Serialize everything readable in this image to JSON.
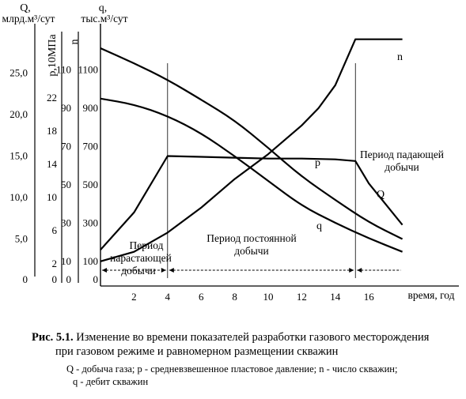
{
  "chart_data": {
    "type": "line",
    "x_axis": {
      "label": "время, год",
      "range": [
        0,
        18
      ],
      "ticks": [
        2,
        4,
        6,
        8,
        10,
        12,
        14,
        16
      ]
    },
    "y_axes": [
      {
        "id": "Q",
        "label": "Q,",
        "units": "млрд.м³/сут",
        "range": [
          0,
          30
        ],
        "ticks": [
          0,
          5.0,
          10.0,
          15.0,
          20.0,
          25.0
        ],
        "tick_labels": [
          "0",
          "5,0",
          "10,0",
          "15,0",
          "20,0",
          "25,0"
        ]
      },
      {
        "id": "p",
        "label": "р,10МПа",
        "range": [
          0,
          30
        ],
        "ticks": [
          0,
          2,
          6,
          10,
          14,
          18,
          22
        ],
        "tick_labels": [
          "0",
          "2",
          "6",
          "10",
          "14",
          "18",
          "22"
        ]
      },
      {
        "id": "n",
        "label": "n",
        "range": [
          0,
          130
        ],
        "ticks": [
          0,
          10,
          30,
          50,
          70,
          90,
          110
        ],
        "tick_labels": [
          "0",
          "10",
          "30",
          "50",
          "70",
          "90",
          "110"
        ]
      },
      {
        "id": "q",
        "label": "q,",
        "units": "тыс.м³/сут",
        "range": [
          0,
          1300
        ],
        "ticks": [
          0,
          100,
          300,
          500,
          700,
          900,
          1100
        ],
        "tick_labels": [
          "0",
          "100",
          "300",
          "500",
          "700",
          "900",
          "1100"
        ]
      }
    ],
    "series": [
      {
        "name": "n",
        "axis": "n",
        "x": [
          0,
          2,
          4,
          6,
          8,
          10,
          12,
          13,
          14,
          15.2,
          16,
          18
        ],
        "y": [
          10,
          15,
          25,
          38,
          53,
          66,
          81,
          90,
          102,
          126,
          126,
          126
        ]
      },
      {
        "name": "p",
        "axis": "p",
        "x": [
          0,
          2,
          4,
          6,
          8,
          10,
          12,
          14,
          16,
          18
        ],
        "y": [
          28,
          26.2,
          24.2,
          21.8,
          19.3,
          16,
          12.5,
          9.7,
          7,
          5
        ]
      },
      {
        "name": "Q",
        "axis": "Q",
        "x": [
          0,
          2,
          4,
          6,
          8,
          10,
          12,
          14,
          15.2,
          16,
          18
        ],
        "y": [
          3.7,
          8.2,
          15,
          14.9,
          14.8,
          14.7,
          14.7,
          14.6,
          14.4,
          11.7,
          6.7
        ]
      },
      {
        "name": "q",
        "axis": "q",
        "x": [
          0,
          2,
          4,
          6,
          8,
          10,
          12,
          14,
          16,
          18
        ],
        "y": [
          950,
          920,
          860,
          770,
          650,
          520,
          390,
          300,
          220,
          150
        ]
      }
    ],
    "curve_labels": {
      "n": "n",
      "p": "p",
      "Q": "Q",
      "q": "q"
    },
    "period_labels": [
      {
        "line1": "Период",
        "line2": "нарастающей",
        "line3": "добычи",
        "from": 0,
        "to": 4
      },
      {
        "line1": "Период постоянной",
        "line2": "добычи",
        "from": 4,
        "to": 15.2
      },
      {
        "line1": "Период падающей",
        "line2": "добычи",
        "from": 15.2,
        "to": 18
      }
    ],
    "period_boundaries": [
      4,
      15.2
    ]
  },
  "caption": {
    "number": "Рис. 5.1.",
    "title_line1": "Изменение во времени показателей разработки газового месторождения",
    "title_line2": "при газовом режиме и равномерном размещении скважин",
    "legend_line1": "Q - добыча газа; р - средневзвешенное пластовое давление; n - число скважин;",
    "legend_line2": "q - дебит скважин"
  }
}
